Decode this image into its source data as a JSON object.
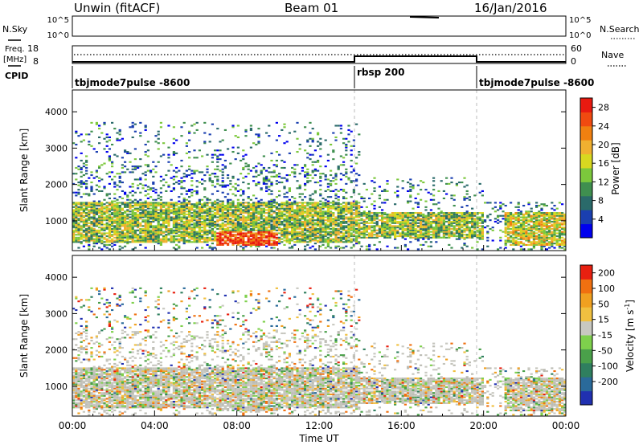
{
  "header": {
    "station": "Unwin (fitACF)",
    "beam": "Beam 01",
    "date": "16/Jan/2016"
  },
  "noise_panel": {
    "left_label": "N.Sky",
    "right_label": "N.Search",
    "left_ticks": [
      "10^5",
      "10^0"
    ],
    "right_ticks": [
      "10^5",
      "10^0"
    ]
  },
  "freq_panel": {
    "left_label_1": "Freq.",
    "left_label_2": "[MHz]",
    "right_label": "Nave",
    "left_ticks": [
      "18",
      "8"
    ],
    "right_ticks": [
      "60",
      "0"
    ]
  },
  "cpid_panel": {
    "label": "CPID",
    "segments": [
      {
        "name": "tbjmode7pulse -8600",
        "start_h": 0,
        "end_h": 14
      },
      {
        "name": "rbsp 200",
        "start_h": 14,
        "end_h": 20
      },
      {
        "name": "tbjmode7pulse -8600",
        "start_h": 20,
        "end_h": 24
      }
    ]
  },
  "chart_data": [
    {
      "type": "heatmap",
      "panel": "power",
      "ylabel": "Slant Range [km]",
      "ylim": [
        180,
        4600
      ],
      "yticks": [
        "1000",
        "2000",
        "3000",
        "4000"
      ],
      "xlim_hours": [
        0,
        24
      ],
      "colorbar": {
        "title": "Power [dB]",
        "ticks": [
          "4",
          "8",
          "12",
          "16",
          "20",
          "24",
          "28"
        ],
        "range": [
          0,
          30
        ],
        "colors": [
          "#0000ee",
          "#1a3fb0",
          "#2a6a6a",
          "#3f8f4f",
          "#7cc83c",
          "#d8d820",
          "#f0b030",
          "#f08010",
          "#f04a10",
          "#e81a10"
        ]
      },
      "regions": [
        {
          "label": "scatter band 00-14",
          "x_h": [
            0,
            14
          ],
          "y_km": [
            400,
            1500
          ],
          "mean_db": 14
        },
        {
          "label": "strong echoes",
          "x_h": [
            7,
            10
          ],
          "y_km": [
            300,
            700
          ],
          "mean_db": 26
        },
        {
          "label": "rbsp sounding",
          "x_h": [
            14,
            20
          ],
          "y_km": [
            500,
            1200
          ],
          "mean_db": 14
        },
        {
          "label": "evening band",
          "x_h": [
            21,
            24
          ],
          "y_km": [
            300,
            1200
          ],
          "mean_db": 16
        }
      ]
    },
    {
      "type": "heatmap",
      "panel": "velocity",
      "ylabel": "Slant Range [km]",
      "ylim": [
        180,
        4600
      ],
      "yticks": [
        "1000",
        "2000",
        "3000",
        "4000"
      ],
      "xlim_hours": [
        0,
        24
      ],
      "colorbar": {
        "title": "Velocity [m s",
        "title_sup": "-1",
        "title_end": "]",
        "ticks": [
          "200",
          "100",
          "50",
          "15",
          "-15",
          "-50",
          "-100",
          "-200"
        ],
        "colors": [
          "#2030b0",
          "#2a6a9a",
          "#2f7f5f",
          "#4aa04a",
          "#7ed04c",
          "#c8c8c0",
          "#f0c040",
          "#f0a020",
          "#f07010",
          "#e82010"
        ]
      }
    }
  ],
  "xaxis": {
    "label": "Time UT",
    "ticks": [
      "00:00",
      "04:00",
      "08:00",
      "12:00",
      "16:00",
      "20:00",
      "00:00"
    ]
  }
}
